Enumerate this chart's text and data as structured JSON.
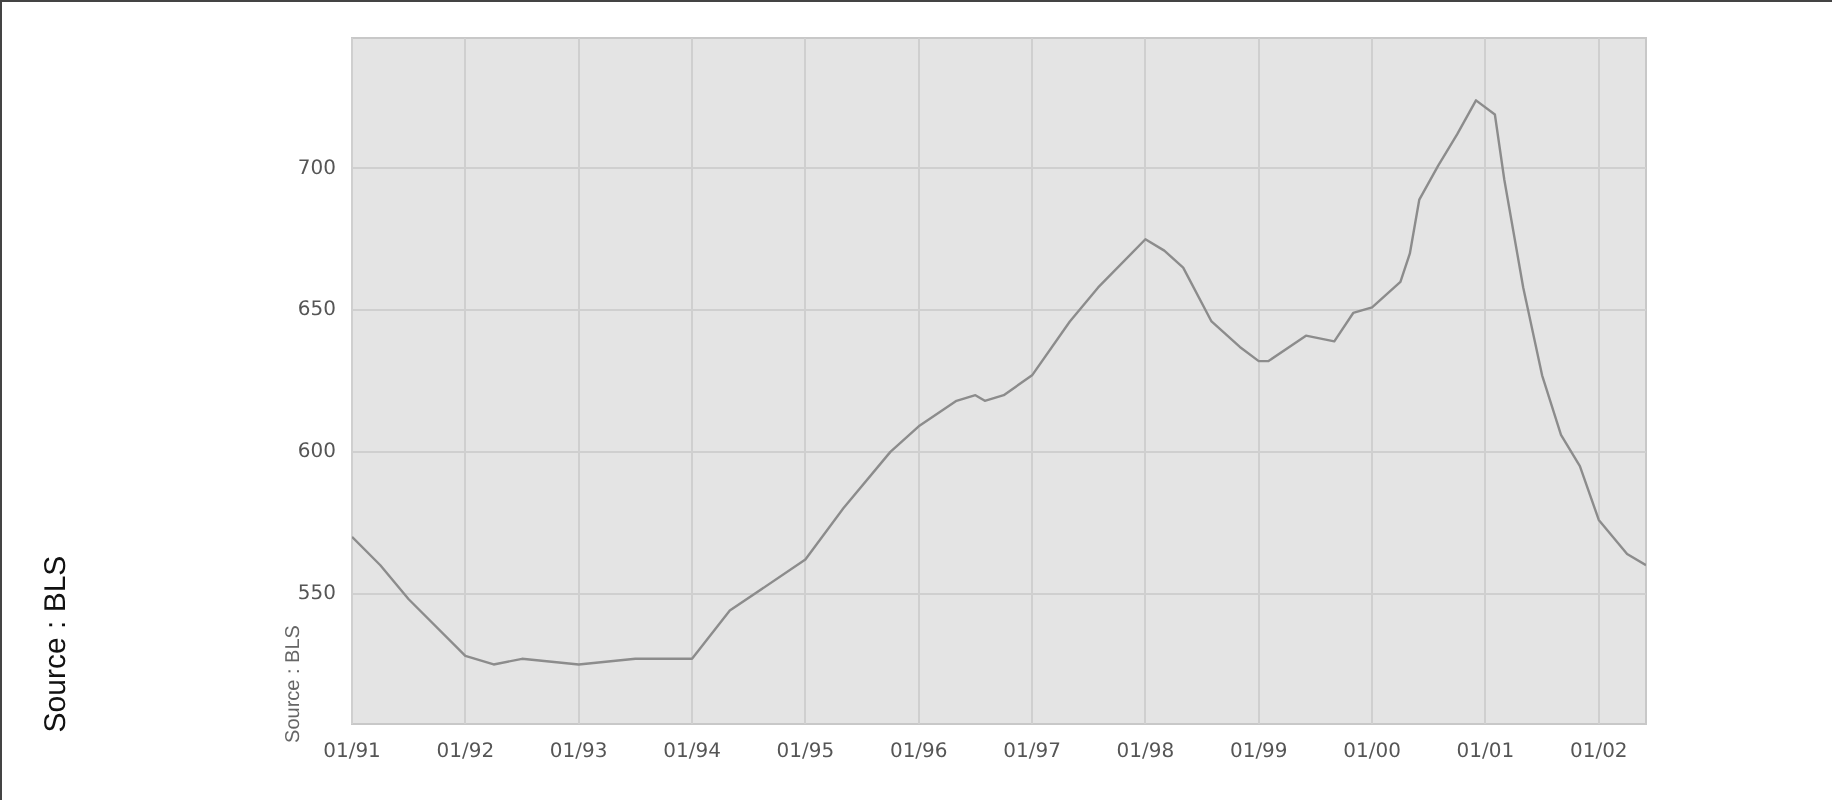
{
  "chart_data": {
    "type": "line",
    "x": [
      "1991-01",
      "1991-04",
      "1991-07",
      "1992-01",
      "1992-04",
      "1992-07",
      "1993-01",
      "1993-07",
      "1994-01",
      "1994-05",
      "1995-01",
      "1995-05",
      "1995-10",
      "1996-01",
      "1996-05",
      "1996-07",
      "1996-08",
      "1996-10",
      "1997-01",
      "1997-05",
      "1997-08",
      "1998-01",
      "1998-03",
      "1998-05",
      "1998-08",
      "1998-11",
      "1999-01",
      "1999-02",
      "1999-06",
      "1999-09",
      "1999-11",
      "2000-01",
      "2000-04",
      "2000-05",
      "2000-06",
      "2000-08",
      "2000-10",
      "2000-12",
      "2001-02",
      "2001-03",
      "2001-05",
      "2001-07",
      "2001-09",
      "2001-11",
      "2002-01",
      "2002-04",
      "2002-06"
    ],
    "series": [
      {
        "color": "#8c8c8c",
        "values": [
          570,
          560,
          548,
          528,
          525,
          527,
          525,
          527,
          527,
          544,
          562,
          580,
          600,
          609,
          618,
          620,
          618,
          620,
          627,
          646,
          658,
          675,
          671,
          665,
          646,
          637,
          632,
          632,
          641,
          639,
          649,
          651,
          660,
          670,
          689,
          701,
          712,
          724,
          719,
          696,
          658,
          627,
          606,
          595,
          576,
          564,
          560
        ]
      }
    ],
    "xlim": [
      "1991-01",
      "2002-06"
    ],
    "xticks": [
      {
        "value": "1991-01",
        "label": "01/91"
      },
      {
        "value": "1992-01",
        "label": "01/92"
      },
      {
        "value": "1993-01",
        "label": "01/93"
      },
      {
        "value": "1994-01",
        "label": "01/94"
      },
      {
        "value": "1995-01",
        "label": "01/95"
      },
      {
        "value": "1996-01",
        "label": "01/96"
      },
      {
        "value": "1997-01",
        "label": "01/97"
      },
      {
        "value": "1998-01",
        "label": "01/98"
      },
      {
        "value": "1999-01",
        "label": "01/99"
      },
      {
        "value": "2000-01",
        "label": "01/00"
      },
      {
        "value": "2001-01",
        "label": "01/01"
      },
      {
        "value": "2002-01",
        "label": "01/02"
      }
    ],
    "ylim": [
      504,
      746
    ],
    "yticks": [
      550,
      600,
      650,
      700
    ],
    "grid": true,
    "legend": false,
    "marker": "none",
    "line_style": "solid",
    "annotations": [
      "Source : BLS",
      "Source : BLS"
    ]
  }
}
